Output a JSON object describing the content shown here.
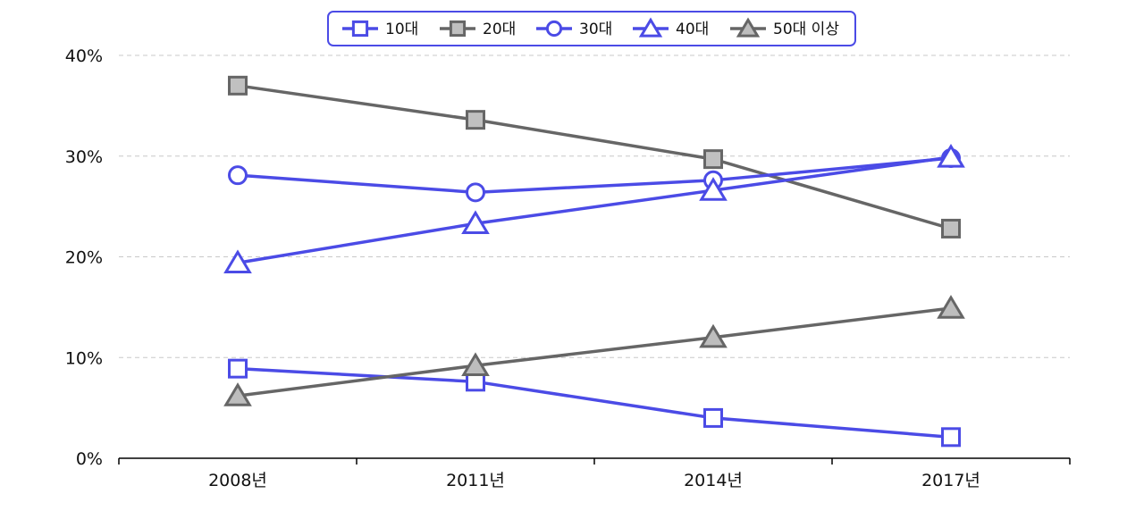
{
  "chart_data": {
    "type": "line",
    "categories": [
      "2008년",
      "2011년",
      "2014년",
      "2017년"
    ],
    "ylim": [
      0,
      40
    ],
    "yticks": [
      0,
      10,
      20,
      30,
      40
    ],
    "ytick_labels": [
      "0%",
      "10%",
      "20%",
      "30%",
      "40%"
    ],
    "grid": true,
    "legend_position": "top-center",
    "series": [
      {
        "name": "10대",
        "marker": "square",
        "fill": "#ffffff",
        "color": "#4b4be6",
        "values": [
          8.9,
          7.6,
          4.0,
          2.1
        ]
      },
      {
        "name": "20대",
        "marker": "square",
        "fill": "#c0c0c0",
        "color": "#666666",
        "values": [
          37.0,
          33.6,
          29.7,
          22.8
        ]
      },
      {
        "name": "30대",
        "marker": "circle",
        "fill": "#ffffff",
        "color": "#4b4be6",
        "values": [
          28.1,
          26.4,
          27.6,
          29.8
        ]
      },
      {
        "name": "40대",
        "marker": "triangle",
        "fill": "#ffffff",
        "color": "#4b4be6",
        "values": [
          19.4,
          23.3,
          26.6,
          29.9
        ]
      },
      {
        "name": "50대 이상",
        "marker": "triangle",
        "fill": "#bdbdbd",
        "color": "#666666",
        "values": [
          6.2,
          9.2,
          12.0,
          14.9
        ]
      }
    ]
  }
}
